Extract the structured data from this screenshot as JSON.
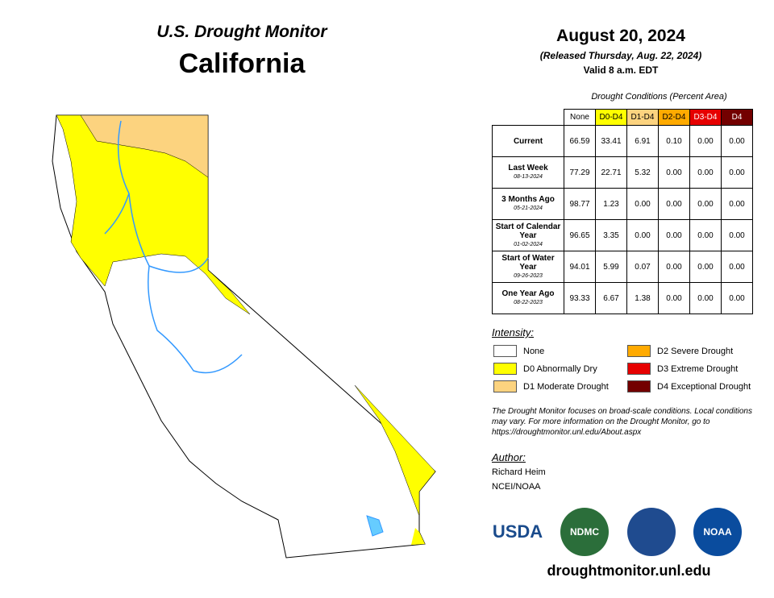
{
  "header": {
    "title": "U.S. Drought Monitor",
    "state": "California"
  },
  "release": {
    "date": "August 20, 2024",
    "released": "(Released Thursday, Aug. 22, 2024)",
    "valid": "Valid 8 a.m. EDT"
  },
  "table": {
    "caption": "Drought Conditions (Percent Area)",
    "columns": [
      "None",
      "D0-D4",
      "D1-D4",
      "D2-D4",
      "D3-D4",
      "D4"
    ],
    "rows": [
      {
        "label": "Current",
        "values": [
          "66.59",
          "33.41",
          "6.91",
          "0.10",
          "0.00",
          "0.00"
        ]
      },
      {
        "label": "Last Week",
        "date": "08-13-2024",
        "values": [
          "77.29",
          "22.71",
          "5.32",
          "0.00",
          "0.00",
          "0.00"
        ]
      },
      {
        "label": "3 Months Ago",
        "date": "05-21-2024",
        "values": [
          "98.77",
          "1.23",
          "0.00",
          "0.00",
          "0.00",
          "0.00"
        ]
      },
      {
        "label": "Start of Calendar Year",
        "date": "01-02-2024",
        "values": [
          "96.65",
          "3.35",
          "0.00",
          "0.00",
          "0.00",
          "0.00"
        ]
      },
      {
        "label": "Start of Water Year",
        "date": "09-26-2023",
        "values": [
          "94.01",
          "5.99",
          "0.07",
          "0.00",
          "0.00",
          "0.00"
        ]
      },
      {
        "label": "One Year Ago",
        "date": "08-22-2023",
        "values": [
          "93.33",
          "6.67",
          "1.38",
          "0.00",
          "0.00",
          "0.00"
        ]
      }
    ]
  },
  "legend": {
    "title": "Intensity:",
    "items": [
      "None",
      "D0 Abnormally Dry",
      "D1 Moderate Drought",
      "D2 Severe Drought",
      "D3 Extreme Drought",
      "D4 Exceptional Drought"
    ]
  },
  "note": "The Drought Monitor focuses on broad-scale conditions. Local conditions may vary. For more information on the Drought Monitor, go to https://droughtmonitor.unl.edu/About.aspx",
  "author": {
    "heading": "Author:",
    "lines": [
      "Richard Heim",
      "NCEI/NOAA"
    ]
  },
  "logos": [
    "USDA",
    "NDMC",
    "NOAA"
  ],
  "url": "droughtmonitor.unl.edu"
}
